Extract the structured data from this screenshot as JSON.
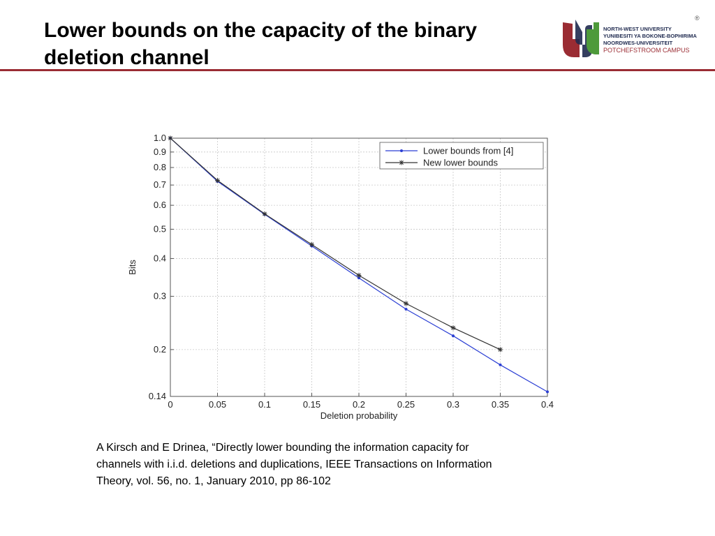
{
  "slide": {
    "title_line1": "Lower bounds on the capacity of the binary",
    "title_line2": "deletion channel",
    "logo": {
      "line1": "NORTH-WEST UNIVERSITY",
      "line2": "YUNIBESITI YA BOKONE-BOPHIRIMA",
      "line3": "NOORDWES-UNIVERSITEIT",
      "line4": "POTCHEFSTROOM CAMPUS",
      "registered": "®"
    },
    "caption_line1": "A  Kirsch and E Drinea, “Directly lower bounding the information capacity for",
    "caption_line2": "channels with i.i.d. deletions and duplications, IEEE Transactions on Information",
    "caption_line3": "Theory, vol. 56, no. 1, January 2010, pp 86-102",
    "accent_color": "#9a2c33"
  },
  "chart_data": {
    "type": "line",
    "xlabel": "Deletion probability",
    "ylabel": "Bits",
    "xlim": [
      0,
      0.4
    ],
    "ylim": [
      0.14,
      1.0
    ],
    "yscale": "log",
    "grid": true,
    "legend_position": "top-right",
    "x_ticks": [
      0,
      0.05,
      0.1,
      0.15,
      0.2,
      0.25,
      0.3,
      0.35,
      0.4
    ],
    "x_tick_labels": [
      "0",
      "0.05",
      "0.1",
      "0.15",
      "0.2",
      "0.25",
      "0.3",
      "0.35",
      "0.4"
    ],
    "y_ticks": [
      0.14,
      0.2,
      0.3,
      0.4,
      0.5,
      0.6,
      0.7,
      0.8,
      0.9,
      1.0
    ],
    "y_tick_labels": [
      "0.14",
      "0.2",
      "0.3",
      "0.4",
      "0.5",
      "0.6",
      "0.7",
      "0.8",
      "0.9",
      "1.0"
    ],
    "series": [
      {
        "name": "Lower bounds from [4]",
        "color": "#2b3fd4",
        "marker": "dot",
        "x": [
          0,
          0.05,
          0.1,
          0.15,
          0.2,
          0.25,
          0.3,
          0.35,
          0.4
        ],
        "y": [
          1.0,
          0.72,
          0.56,
          0.44,
          0.345,
          0.272,
          0.222,
          0.178,
          0.145
        ]
      },
      {
        "name": "New lower bounds",
        "color": "#333333",
        "marker": "star",
        "x": [
          0,
          0.05,
          0.1,
          0.15,
          0.2,
          0.25,
          0.3,
          0.35
        ],
        "y": [
          1.0,
          0.725,
          0.562,
          0.445,
          0.352,
          0.284,
          0.236,
          0.2
        ]
      }
    ]
  }
}
